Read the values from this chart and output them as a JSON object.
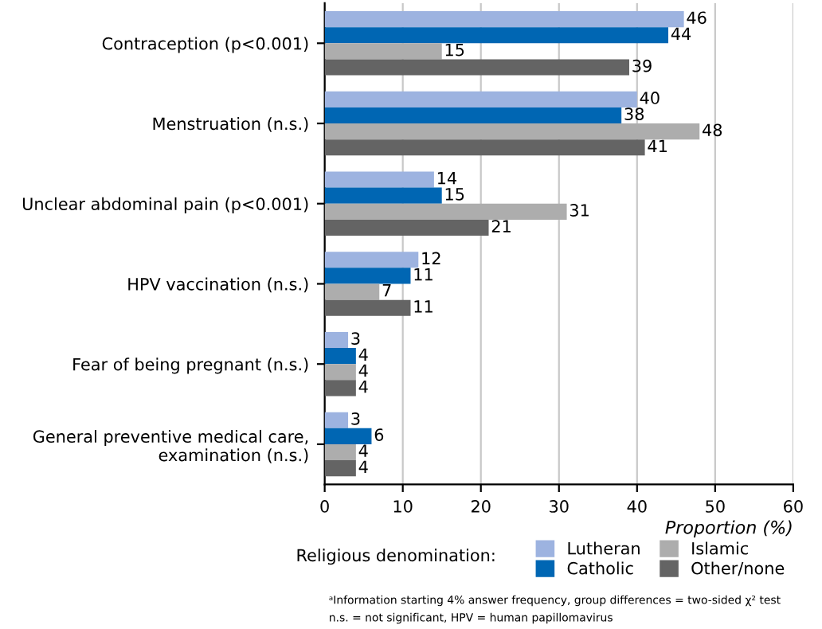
{
  "chart_data": {
    "type": "bar",
    "orientation": "horizontal",
    "xlabel": "Proportion (%)",
    "legend_title": "Religious denomination:",
    "categories": [
      "Contraception (p<0.001)",
      "Menstruation (n.s.)",
      "Unclear abdominal pain (p<0.001)",
      "HPV vaccination (n.s.)",
      "Fear of being pregnant (n.s.)",
      "General preventive medical care, examination (n.s.)"
    ],
    "series": [
      {
        "name": "Lutheran",
        "color": "#9db3e0",
        "values": [
          46,
          40,
          14,
          12,
          3,
          3
        ]
      },
      {
        "name": "Catholic",
        "color": "#0066b3",
        "values": [
          44,
          38,
          15,
          11,
          4,
          6
        ]
      },
      {
        "name": "Islamic",
        "color": "#adadad",
        "values": [
          15,
          48,
          31,
          7,
          4,
          4
        ]
      },
      {
        "name": "Other/none",
        "color": "#646464",
        "values": [
          39,
          41,
          21,
          11,
          4,
          4
        ]
      }
    ],
    "xlim": [
      0,
      60
    ],
    "xticks": [
      0,
      10,
      20,
      30,
      40,
      50,
      60
    ],
    "grid": "x",
    "legend": "bottom",
    "data_labels": true,
    "annotations": [
      "ᵃInformation starting 4% answer frequency, group differences = two-sided χ² test",
      "n.s. = not significant, HPV = human papillomavirus"
    ]
  }
}
